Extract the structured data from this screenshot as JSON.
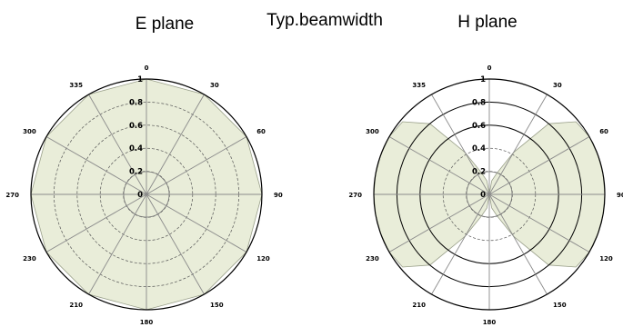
{
  "header": {
    "center_label": "Typ.beamwidth"
  },
  "style": {
    "fill_color": "#e9edd9",
    "grid_color": "#8a8a8a",
    "outline_color": "#000000"
  },
  "chart_data": [
    {
      "type": "polar",
      "title": "E plane",
      "radial_ticks": [
        0,
        0.2,
        0.4,
        0.6,
        0.8,
        1
      ],
      "radial_range": [
        0,
        1
      ],
      "angle_labels": [
        "0",
        "30",
        "60",
        "90",
        "120",
        "150",
        "180",
        "210",
        "230",
        "270",
        "300",
        "335"
      ],
      "grid": true,
      "series": [
        {
          "angles_deg": [
            0,
            30,
            60,
            90,
            120,
            150,
            180,
            210,
            240,
            270,
            300,
            330,
            360
          ],
          "values": [
            1,
            1,
            1,
            1,
            1,
            1,
            1,
            1,
            1,
            1,
            1,
            1,
            1
          ]
        }
      ]
    },
    {
      "type": "polar",
      "title": "H plane",
      "radial_ticks": [
        0,
        0.2,
        0.4,
        0.6,
        0.8,
        1
      ],
      "radial_range": [
        0,
        1
      ],
      "angle_labels": [
        "0",
        "30",
        "60",
        "90",
        "120",
        "150",
        "180",
        "210",
        "230",
        "270",
        "300",
        "335"
      ],
      "grid": true,
      "series": [
        {
          "angles_deg": [
            0,
            10,
            20,
            30,
            40,
            50,
            60,
            70,
            80,
            90,
            100,
            110,
            120,
            130,
            140,
            150,
            160,
            170,
            180,
            190,
            200,
            210,
            220,
            230,
            240,
            250,
            260,
            270,
            280,
            290,
            300,
            310,
            320,
            330,
            340,
            350,
            360
          ],
          "values": [
            0,
            0.12,
            0.2,
            0.42,
            0.8,
            0.98,
            1,
            1,
            1,
            1,
            1,
            1,
            1,
            0.98,
            0.8,
            0.42,
            0.2,
            0.12,
            0,
            0.12,
            0.2,
            0.42,
            0.8,
            0.98,
            1,
            1,
            1,
            1,
            1,
            1,
            1,
            0.98,
            0.8,
            0.42,
            0.2,
            0.12,
            0
          ]
        }
      ]
    }
  ]
}
